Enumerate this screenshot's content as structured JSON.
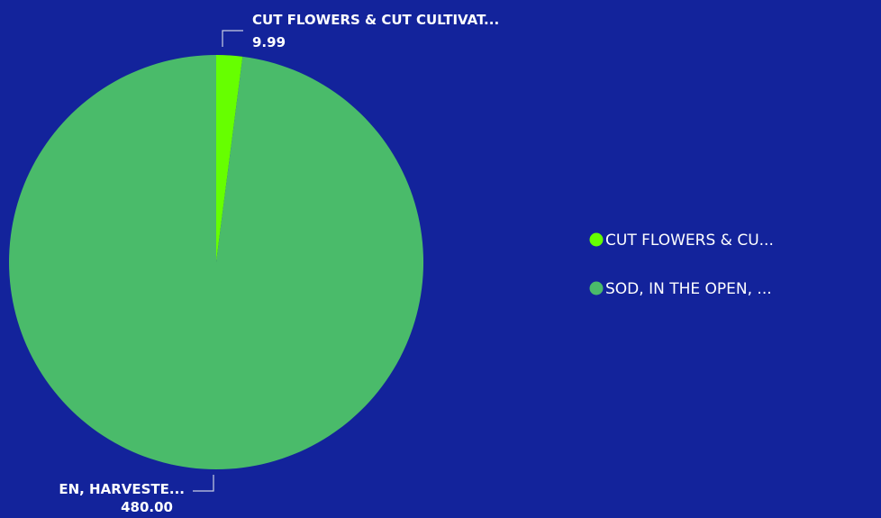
{
  "chart_data": {
    "type": "pie",
    "slices": [
      {
        "callout_label": "CUT FLOWERS & CUT CULTIVAT...",
        "value": 9.99,
        "value_label": "9.99",
        "legend_label": "CUT FLOWERS & CU...",
        "color": "#66ff00"
      },
      {
        "callout_label": "EN, HARVESTE...",
        "value": 480.0,
        "value_label": "480.00",
        "legend_label": "SOD, IN THE OPEN, ...",
        "color": "#4abb6a"
      }
    ],
    "legend_position": "right"
  },
  "colors": {
    "background": "#13239b"
  }
}
